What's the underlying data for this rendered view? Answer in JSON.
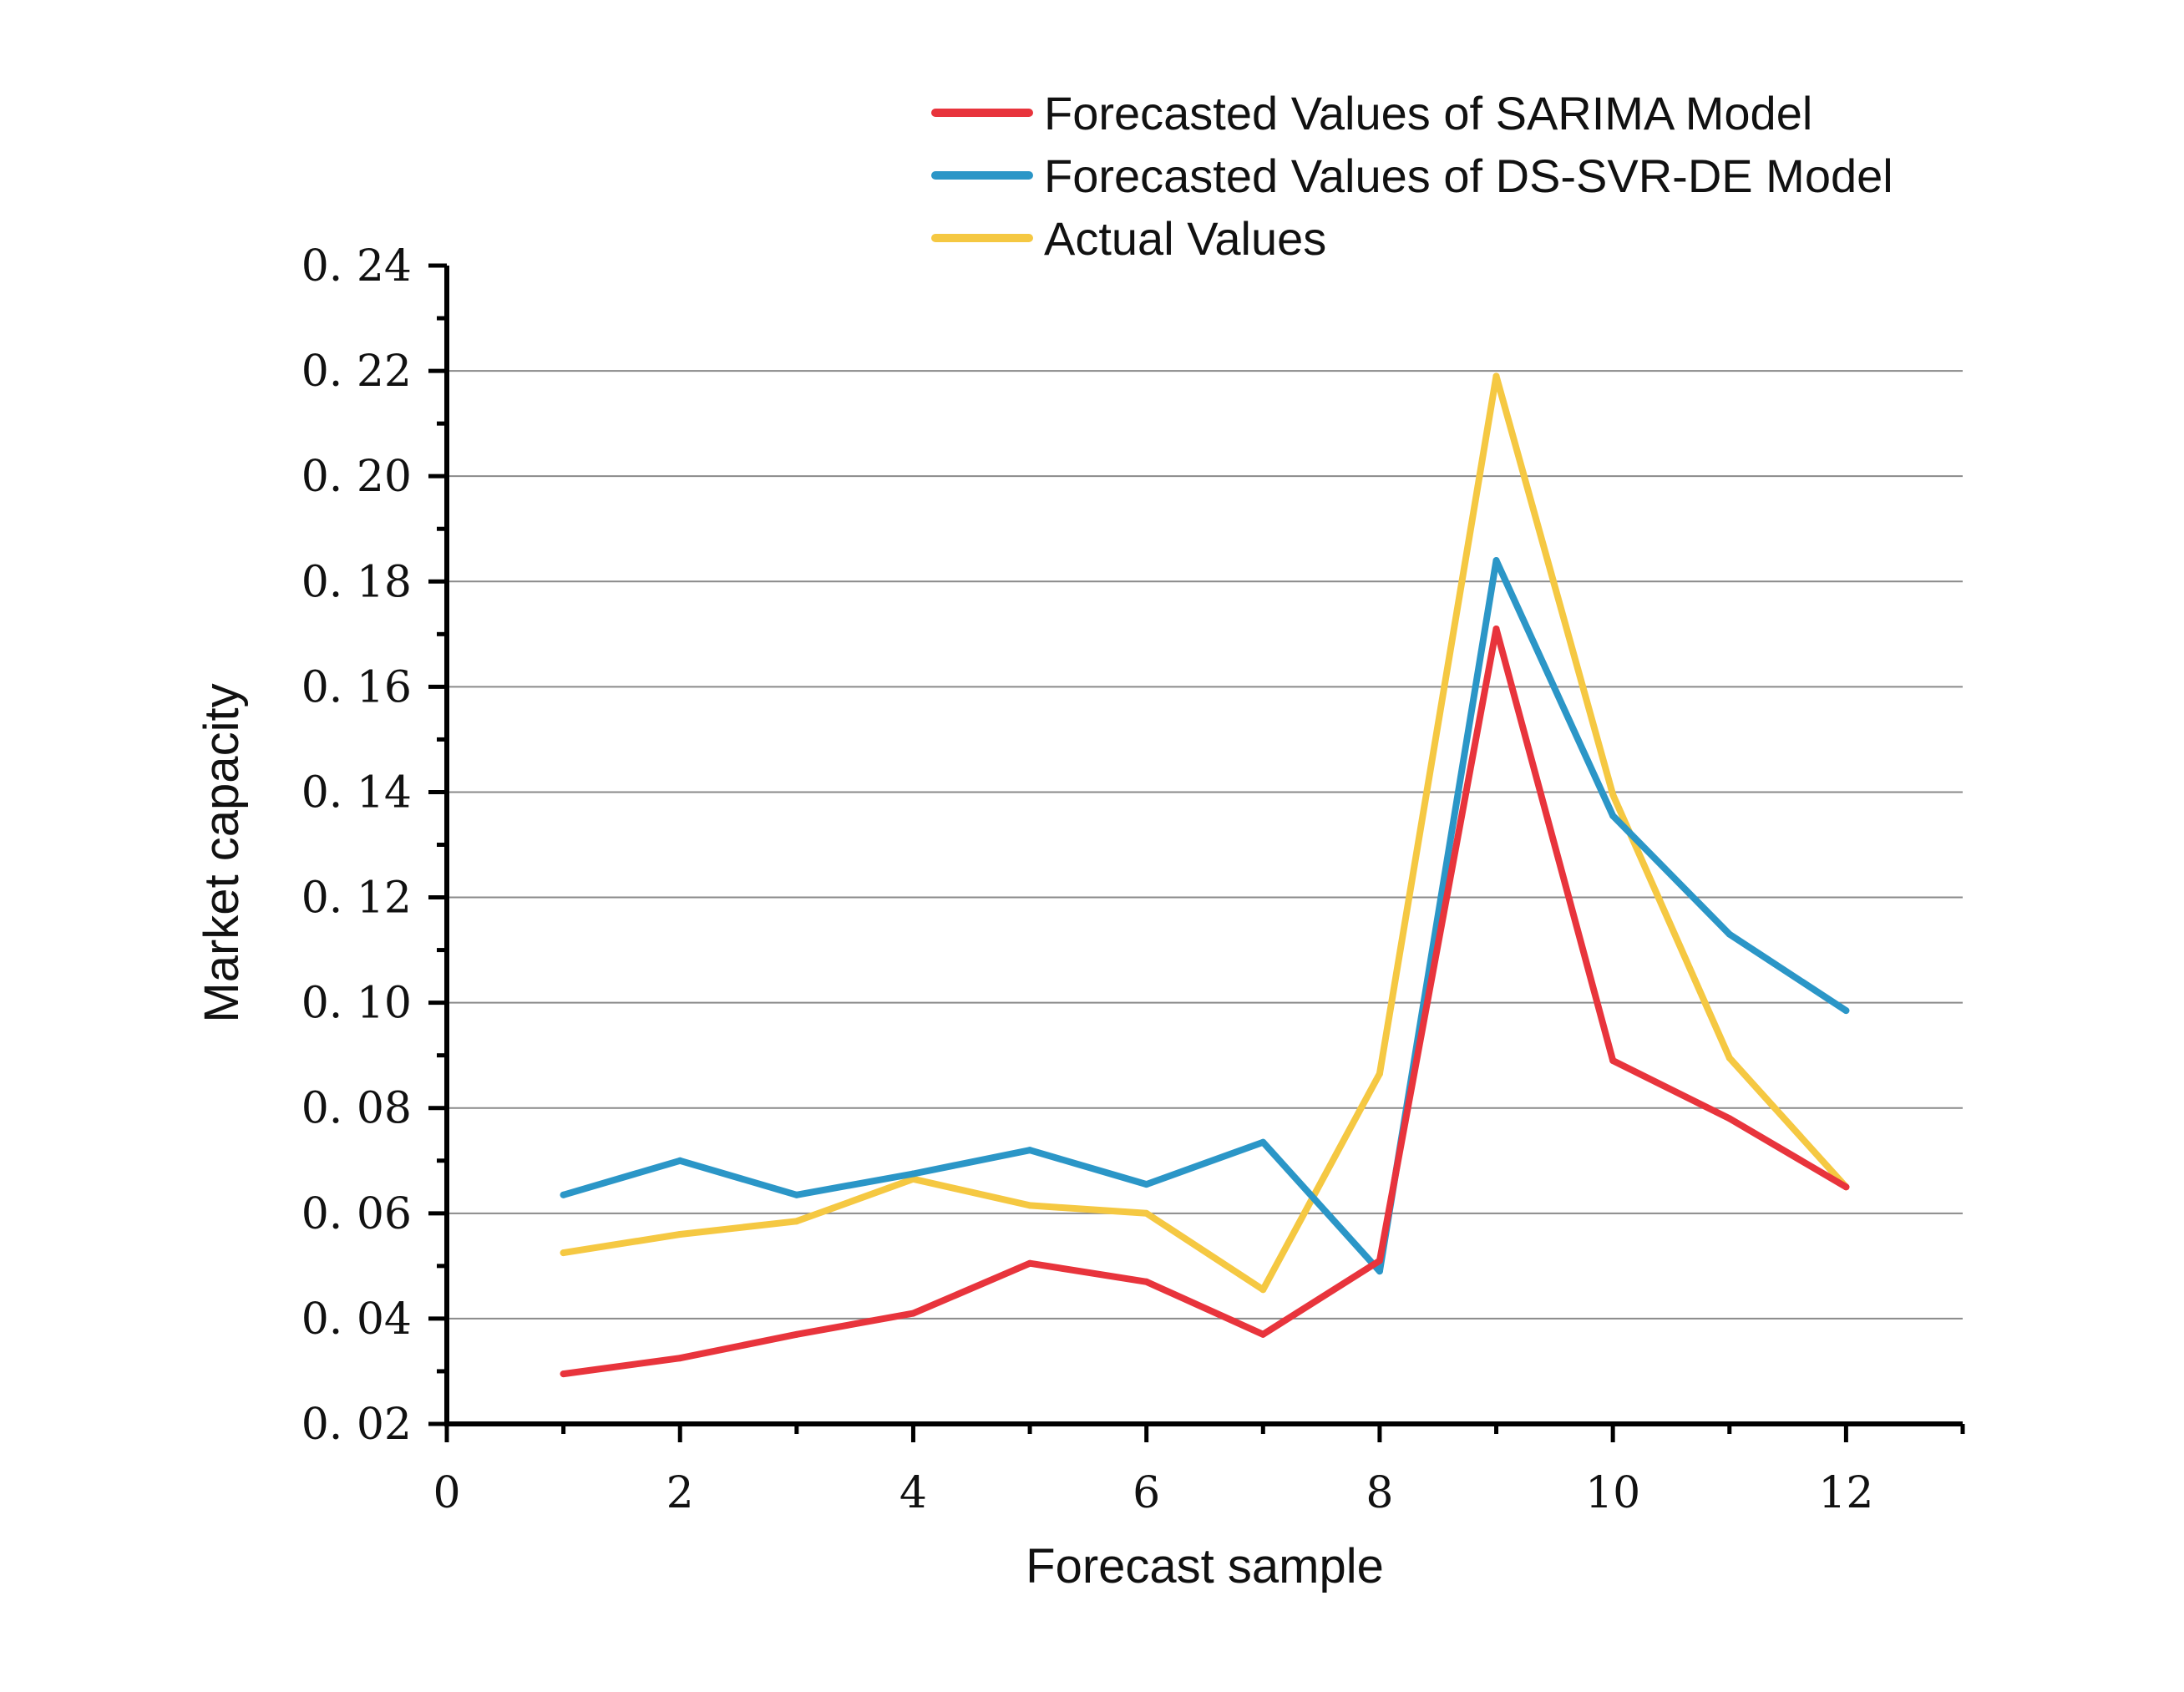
{
  "chart_data": {
    "type": "line",
    "title": "",
    "xlabel": "Forecast sample",
    "ylabel": "Market capacity",
    "xlim": [
      0,
      13
    ],
    "ylim": [
      0.02,
      0.24
    ],
    "x_ticks": [
      0,
      2,
      4,
      6,
      8,
      10,
      12
    ],
    "x_tick_labels": [
      "0",
      "2",
      "4",
      "6",
      "8",
      "10",
      "12"
    ],
    "y_ticks": [
      0.02,
      0.04,
      0.06,
      0.08,
      0.1,
      0.12,
      0.14,
      0.16,
      0.18,
      0.2,
      0.22,
      0.24
    ],
    "y_tick_labels": [
      "0. 02",
      "0. 04",
      "0. 06",
      "0. 08",
      "0. 10",
      "0. 12",
      "0. 14",
      "0. 16",
      "0. 18",
      "0. 20",
      "0. 22",
      "0. 24"
    ],
    "grid": true,
    "legend_position": "top-right",
    "x": [
      1,
      2,
      3,
      4,
      5,
      6,
      7,
      8,
      9,
      10,
      11,
      12
    ],
    "series": [
      {
        "name": "Forecasted Values of SARIMA Model",
        "color": "#e8343c",
        "values": [
          0.0295,
          0.0325,
          0.037,
          0.041,
          0.0505,
          0.047,
          0.037,
          0.051,
          0.171,
          0.089,
          0.078,
          0.065
        ]
      },
      {
        "name": "Forecasted Values of DS-SVR-DE Model",
        "color": "#2b96c7",
        "values": [
          0.0635,
          0.07,
          0.0635,
          0.0675,
          0.072,
          0.0655,
          0.0735,
          0.049,
          0.184,
          0.1355,
          0.113,
          0.0985
        ]
      },
      {
        "name": "Actual Values",
        "color": "#f5c842",
        "values": [
          0.0525,
          0.056,
          0.0585,
          0.0665,
          0.0615,
          0.06,
          0.0455,
          0.0865,
          0.219,
          0.1395,
          0.0895,
          0.065
        ]
      }
    ]
  }
}
